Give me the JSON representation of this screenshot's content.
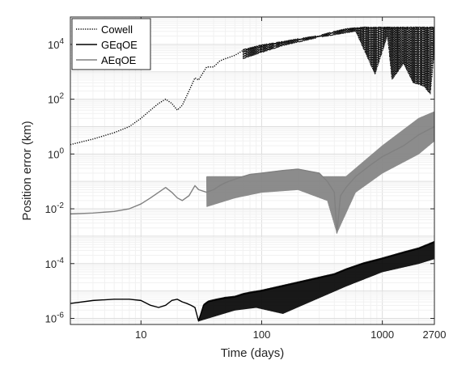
{
  "chart_data": {
    "type": "line",
    "xlabel": "Time (days)",
    "ylabel": "Position error (km)",
    "x_scale": "log",
    "y_scale": "log",
    "xlim": [
      2.6,
      2700
    ],
    "ylim": [
      6e-07,
      100000
    ],
    "x_ticks": [
      {
        "value": 10,
        "label": "10"
      },
      {
        "value": 100,
        "label": "100"
      },
      {
        "value": 1000,
        "label": "1000"
      },
      {
        "value": 2700,
        "label": "2700"
      }
    ],
    "y_ticks": [
      {
        "value": 1e-06,
        "base": "10",
        "exp": "-6"
      },
      {
        "value": 0.0001,
        "base": "10",
        "exp": "-4"
      },
      {
        "value": 0.01,
        "base": "10",
        "exp": "-2"
      },
      {
        "value": 1,
        "base": "10",
        "exp": "0"
      },
      {
        "value": 100,
        "base": "10",
        "exp": "2"
      },
      {
        "value": 10000,
        "base": "10",
        "exp": "4"
      }
    ],
    "grid": true,
    "legend_position": "top-left",
    "series": [
      {
        "name": "Cowell",
        "color": "#000000",
        "style": "dotted",
        "x": [
          2.6,
          4,
          6,
          8,
          10,
          12,
          14,
          16,
          18,
          20,
          22,
          25,
          28,
          30,
          35,
          40,
          45,
          50,
          60,
          70,
          80,
          100,
          150,
          200,
          300,
          400,
          500,
          600,
          700,
          800,
          900,
          1000,
          1200,
          1500,
          1800,
          2000,
          2400,
          2700
        ],
        "y": [
          2.2,
          3.5,
          6,
          10,
          20,
          40,
          70,
          100,
          70,
          40,
          60,
          200,
          600,
          500,
          1500,
          1500,
          2500,
          3000,
          4000,
          6000,
          7000,
          9000,
          12000,
          15000,
          20000,
          28000,
          35000,
          38000,
          40000,
          40000,
          40000,
          40000,
          40000,
          40000,
          40000,
          40000,
          40000,
          40000
        ],
        "envelope_low": [
          {
            "x": 70,
            "y": 3000
          },
          {
            "x": 150,
            "y": 9000
          },
          {
            "x": 300,
            "y": 18000
          },
          {
            "x": 600,
            "y": 30000
          },
          {
            "x": 870,
            "y": 800
          },
          {
            "x": 1100,
            "y": 20000
          },
          {
            "x": 1200,
            "y": 500
          },
          {
            "x": 1500,
            "y": 2000
          },
          {
            "x": 1800,
            "y": 400
          },
          {
            "x": 2200,
            "y": 300
          },
          {
            "x": 2500,
            "y": 150
          },
          {
            "x": 2700,
            "y": 5000
          }
        ]
      },
      {
        "name": "GEqOE",
        "color": "#000000",
        "style": "solid",
        "x": [
          2.6,
          4,
          6,
          8,
          10,
          12,
          14,
          16,
          18,
          20,
          22,
          24,
          26,
          28,
          30,
          33,
          36,
          40,
          45,
          50,
          60,
          70,
          80,
          100,
          120,
          150,
          200,
          250,
          300,
          400,
          500,
          700,
          1000,
          1500,
          2000,
          2700
        ],
        "y": [
          3.5e-06,
          4.5e-06,
          5e-06,
          5e-06,
          4.5e-06,
          3e-06,
          2.5e-06,
          3e-06,
          4.5e-06,
          5e-06,
          4e-06,
          3.5e-06,
          3e-06,
          2.5e-06,
          8e-07,
          3e-06,
          4e-06,
          4.5e-06,
          5e-06,
          5.5e-06,
          6e-06,
          7.5e-06,
          8.5e-06,
          1e-05,
          1.2e-05,
          1.5e-05,
          2e-05,
          2.5e-05,
          3e-05,
          4e-05,
          6e-05,
          0.0001,
          0.00015,
          0.00025,
          0.00035,
          0.0006
        ],
        "envelope_low": [
          {
            "x": 30,
            "y": 8e-07
          },
          {
            "x": 60,
            "y": 2e-06
          },
          {
            "x": 90,
            "y": 2.5e-06
          },
          {
            "x": 150,
            "y": 1.5e-06
          },
          {
            "x": 250,
            "y": 4e-06
          },
          {
            "x": 500,
            "y": 1.5e-05
          },
          {
            "x": 1000,
            "y": 5e-05
          },
          {
            "x": 2000,
            "y": 0.0001
          },
          {
            "x": 2700,
            "y": 0.00015
          }
        ]
      },
      {
        "name": "AEqOE",
        "color": "#808080",
        "style": "solid",
        "x": [
          2.6,
          4,
          6,
          8,
          10,
          12,
          14,
          16,
          18,
          20,
          22,
          25,
          28,
          30,
          35,
          40,
          45,
          50,
          60,
          70,
          80,
          100,
          150,
          200,
          300,
          350,
          400,
          420,
          450,
          500,
          600,
          800,
          1000,
          1500,
          2000,
          2700
        ],
        "y": [
          0.0065,
          0.007,
          0.008,
          0.01,
          0.015,
          0.025,
          0.04,
          0.06,
          0.04,
          0.025,
          0.02,
          0.03,
          0.07,
          0.05,
          0.04,
          0.05,
          0.07,
          0.09,
          0.12,
          0.15,
          0.18,
          0.2,
          0.25,
          0.28,
          0.2,
          0.1,
          0.04,
          0.0013,
          0.03,
          0.06,
          0.15,
          0.4,
          0.8,
          2,
          5,
          10
        ],
        "envelope_low": [
          {
            "x": 35,
            "y": 0.012
          },
          {
            "x": 60,
            "y": 0.025
          },
          {
            "x": 100,
            "y": 0.04
          },
          {
            "x": 200,
            "y": 0.05
          },
          {
            "x": 350,
            "y": 0.02
          },
          {
            "x": 420,
            "y": 0.0013
          },
          {
            "x": 600,
            "y": 0.04
          },
          {
            "x": 1000,
            "y": 0.2
          },
          {
            "x": 2000,
            "y": 1
          },
          {
            "x": 2700,
            "y": 3
          }
        ],
        "envelope_high": [
          {
            "x": 500,
            "y": 0.15
          },
          {
            "x": 1000,
            "y": 2
          },
          {
            "x": 2000,
            "y": 20
          },
          {
            "x": 2700,
            "y": 35
          }
        ]
      }
    ]
  }
}
